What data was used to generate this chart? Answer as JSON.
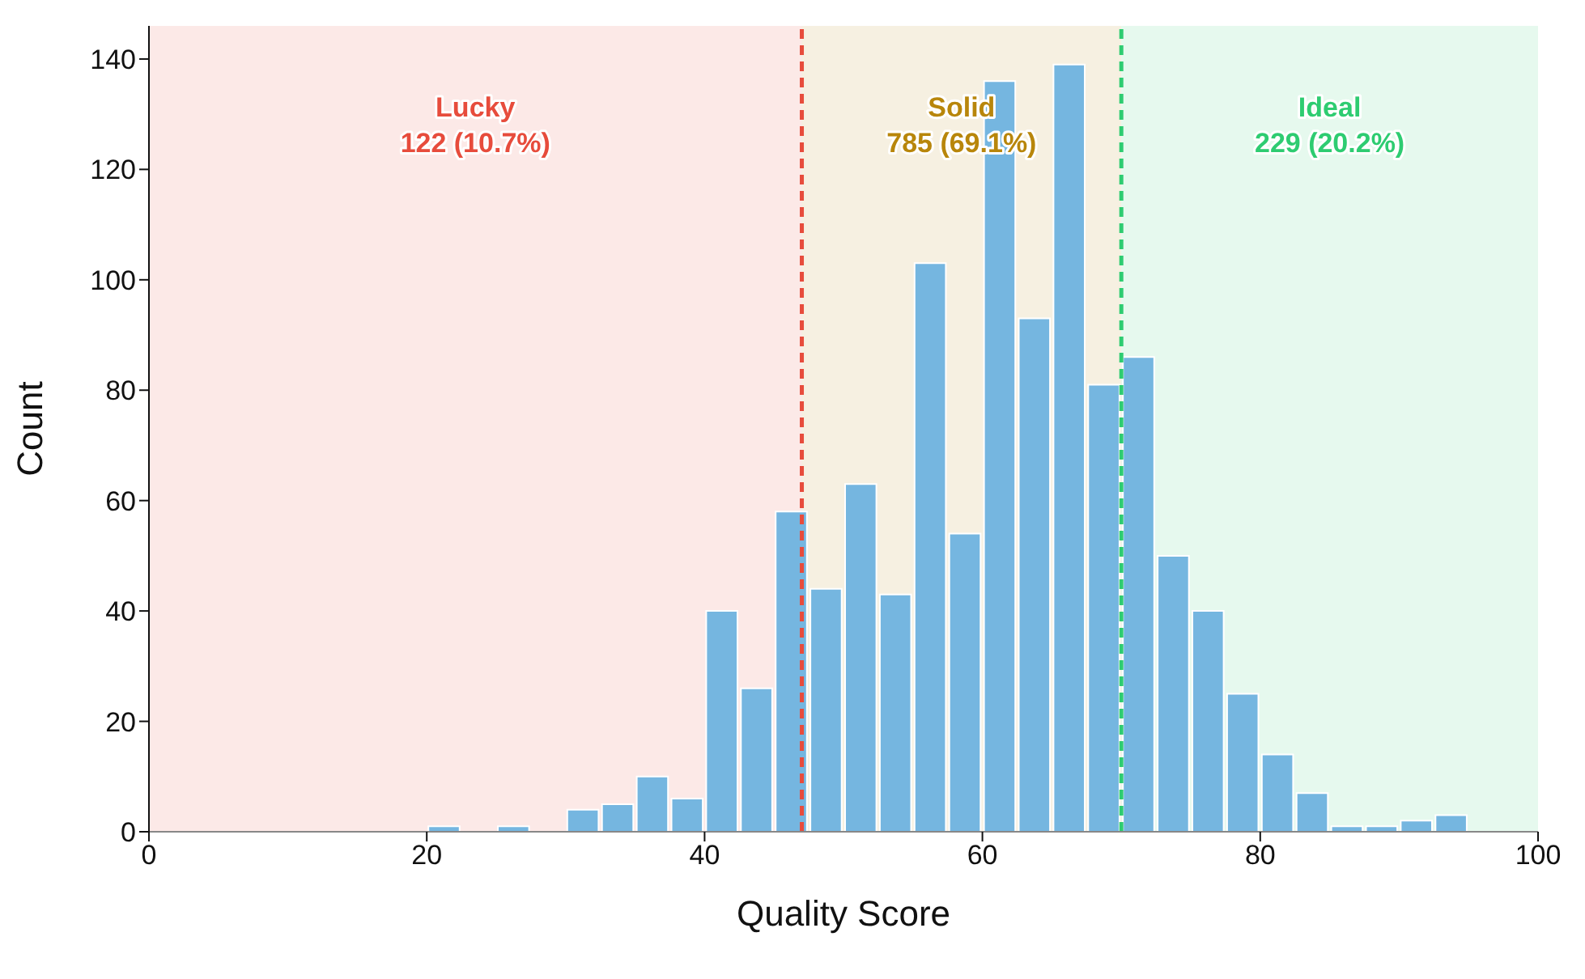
{
  "chart_data": {
    "type": "histogram",
    "xlabel": "Quality Score",
    "ylabel": "Count",
    "color": "#75b6e0",
    "bins": [
      0,
      2.5,
      5,
      7.5,
      10,
      12.5,
      15,
      17.5,
      20,
      22.5,
      25,
      27.5,
      30,
      32.5,
      35,
      37.5,
      40,
      42.5,
      45,
      47.5,
      50,
      52.5,
      55,
      57.5,
      60,
      62.5,
      65,
      67.5,
      70,
      72.5,
      75,
      77.5,
      80,
      82.5,
      85,
      87.5,
      90,
      92.5,
      95,
      97.5,
      100
    ],
    "values": [
      0,
      0,
      0,
      0,
      0,
      0,
      0,
      0,
      1,
      0,
      1,
      0,
      4,
      5,
      10,
      6,
      40,
      26,
      58,
      44,
      63,
      43,
      103,
      54,
      136,
      93,
      139,
      81,
      86,
      50,
      40,
      25,
      14,
      7,
      1,
      1,
      2,
      3,
      0,
      0
    ],
    "xlim": [
      0,
      100
    ],
    "xticks": [
      0,
      20,
      40,
      60,
      80,
      100
    ],
    "ylim": [
      0,
      146
    ],
    "yticks": [
      0,
      20,
      40,
      60,
      80,
      100,
      120,
      140
    ],
    "grid": false,
    "legend": false,
    "bands": [
      {
        "axis": "x",
        "from": 0,
        "to": 47,
        "label": "Lucky\n122 (10.7%)",
        "color": "#e74c3c"
      },
      {
        "axis": "x",
        "from": 47,
        "to": 70,
        "label": "Solid\n785 (69.1%)",
        "color": "#b8860b"
      },
      {
        "axis": "x",
        "from": 70,
        "to": 100,
        "label": "Ideal\n229 (20.2%)",
        "color": "#2ecc71"
      }
    ],
    "ref_lines": [
      {
        "axis": "x",
        "value": 47,
        "color": "#e74c3c",
        "line_style": "dashed"
      },
      {
        "axis": "x",
        "value": 70,
        "color": "#2ecc71",
        "line_style": "dashed"
      }
    ]
  }
}
